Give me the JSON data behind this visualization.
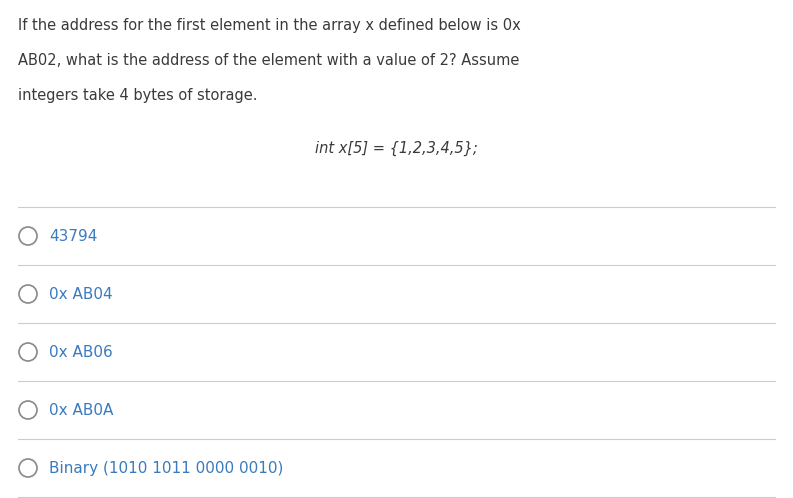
{
  "background_color": "#ffffff",
  "question_text_lines": [
    "If the address for the first element in the array x defined below is 0x",
    "AB02, what is the address of the element with a value of 2? Assume",
    "integers take 4 bytes of storage."
  ],
  "code_text": "int x[5] = {1,2,3,4,5};",
  "options": [
    "43794",
    "0x AB04",
    "0x AB06",
    "0x AB0A",
    "Binary (1010 1011 0000 0010)"
  ],
  "question_text_color": "#3a3a3a",
  "option_text_color": "#3a7abf",
  "line_color": "#cccccc",
  "circle_color": "#888888",
  "question_fontsize": 10.5,
  "code_fontsize": 10.5,
  "option_fontsize": 11.0,
  "fig_width": 7.93,
  "fig_height": 4.98
}
